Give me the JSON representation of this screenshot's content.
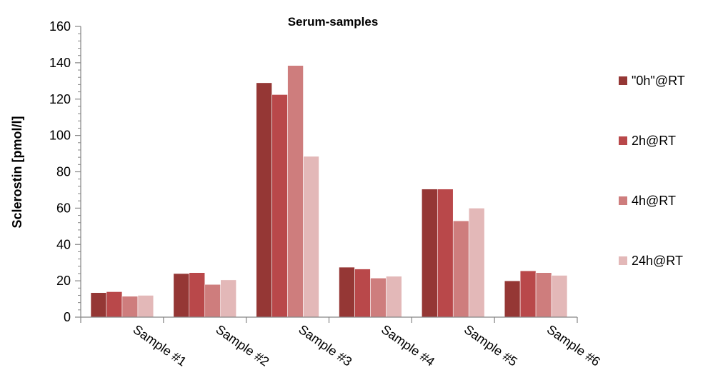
{
  "chart_data": {
    "type": "bar",
    "title": "Serum-samples",
    "xlabel": "",
    "ylabel": "Sclerostin [pmol/l]",
    "ylim": [
      0,
      160
    ],
    "yticks": [
      0,
      20,
      40,
      60,
      80,
      100,
      120,
      140,
      160
    ],
    "grid": false,
    "legend_position": "right",
    "categories": [
      "Sample #1",
      "Sample #2",
      "Sample #3",
      "Sample #4",
      "Sample #5",
      "Sample #6"
    ],
    "series": [
      {
        "name": "\"0h\"@RT",
        "color": "#953735",
        "values": [
          13.5,
          24,
          129,
          27.5,
          70.5,
          20
        ]
      },
      {
        "name": "2h@RT",
        "color": "#B9484A",
        "values": [
          14,
          24.5,
          122.5,
          26.5,
          70.5,
          25.5
        ]
      },
      {
        "name": "4h@RT",
        "color": "#CE7D7D",
        "values": [
          11.5,
          18,
          138.5,
          21.5,
          53,
          24.5
        ]
      },
      {
        "name": "24h@RT",
        "color": "#E3B8B8",
        "values": [
          12,
          20.5,
          88.5,
          22.5,
          60,
          23
        ]
      }
    ]
  }
}
